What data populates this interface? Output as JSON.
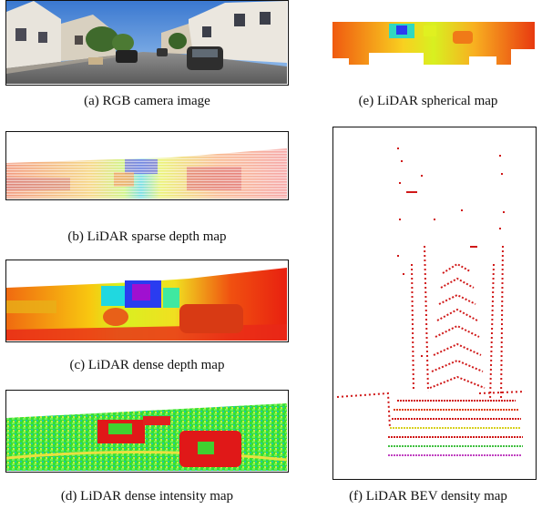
{
  "figure": {
    "panels": [
      {
        "id": "a",
        "caption": "(a) RGB camera image"
      },
      {
        "id": "b",
        "caption": "(b) LiDAR sparse depth map"
      },
      {
        "id": "c",
        "caption": "(c) LiDAR dense depth map"
      },
      {
        "id": "d",
        "caption": "(d) LiDAR dense intensity map"
      },
      {
        "id": "e",
        "caption": "(e) LiDAR spherical map"
      },
      {
        "id": "f",
        "caption": "(f) LiDAR BEV density map"
      }
    ]
  }
}
